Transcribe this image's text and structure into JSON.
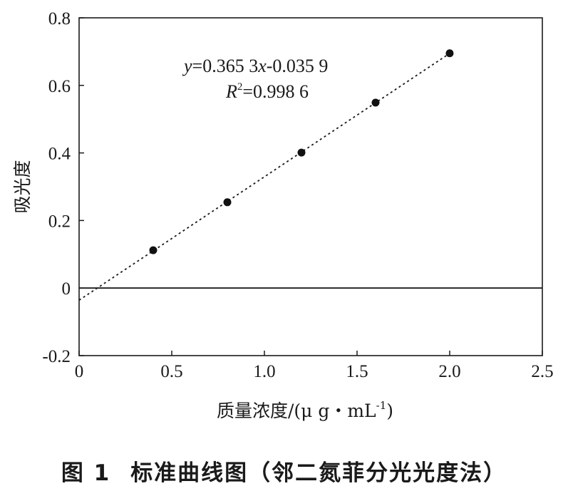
{
  "chart_data": {
    "type": "scatter",
    "x": [
      0.4,
      0.8,
      1.2,
      1.6,
      2.0
    ],
    "y": [
      0.112,
      0.254,
      0.401,
      0.549,
      0.695
    ],
    "xlabel_main": "质量浓度/(μ g・mL",
    "xlabel_sup": "-1",
    "xlabel_close": ")",
    "ylabel": "吸光度",
    "xlim": [
      0,
      2.5
    ],
    "ylim": [
      -0.2,
      0.8
    ],
    "xticks": [
      "0",
      "0.5",
      "1.0",
      "1.5",
      "2.0",
      "2.5"
    ],
    "yticks": [
      "-0.2",
      "0",
      "0.2",
      "0.4",
      "0.6",
      "0.8"
    ],
    "fit": {
      "slope": 0.3653,
      "intercept": -0.0359,
      "line_style": "dotted",
      "equation": {
        "y": "y",
        "mid": "=0.365 3",
        "x": "x",
        "tail": "-0.035 9"
      },
      "r2": {
        "r": "R",
        "sup": "2",
        "value": "=0.998 6"
      }
    },
    "zero_line": true,
    "grid": false
  },
  "caption": {
    "figure_label": "图 1",
    "title": "标准曲线图（邻二氮菲分光光度法）"
  }
}
